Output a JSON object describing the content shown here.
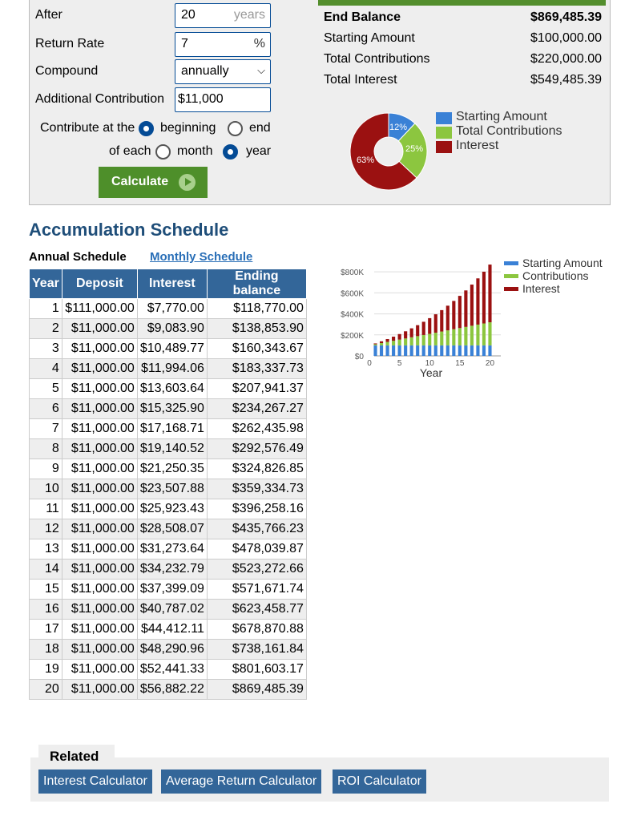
{
  "form": {
    "after_label": "After",
    "after_value": "20",
    "after_suffix": "years",
    "return_label": "Return Rate",
    "return_value": "7",
    "return_suffix": "%",
    "compound_label": "Compound",
    "compound_value": "annually",
    "additional_label": "Additional Contribution",
    "additional_value": "$11,000",
    "contribute_label": "Contribute at the",
    "opt_beginning": "beginning",
    "opt_end": "end",
    "of_each_label": "of each",
    "opt_month": "month",
    "opt_year": "year",
    "calculate_label": "Calculate"
  },
  "results": {
    "end_balance_label": "End Balance",
    "end_balance_value": "$869,485.39",
    "starting_label": "Starting Amount",
    "starting_value": "$100,000.00",
    "contrib_label": "Total Contributions",
    "contrib_value": "$220,000.00",
    "interest_label": "Total Interest",
    "interest_value": "$549,485.39"
  },
  "pie": {
    "slices": [
      {
        "name": "Starting Amount",
        "percent": 12,
        "label": "12%",
        "color": "#3a81d6"
      },
      {
        "name": "Total Contributions",
        "percent": 25,
        "label": "25%",
        "color": "#8cc63f"
      },
      {
        "name": "Interest",
        "percent": 63,
        "label": "63%",
        "color": "#9b1111"
      }
    ]
  },
  "schedule": {
    "title": "Accumulation Schedule",
    "tab_annual": "Annual Schedule",
    "tab_monthly": "Monthly Schedule",
    "headers": [
      "Year",
      "Deposit",
      "Interest",
      "Ending balance"
    ],
    "rows": [
      [
        "1",
        "$111,000.00",
        "$7,770.00",
        "$118,770.00"
      ],
      [
        "2",
        "$11,000.00",
        "$9,083.90",
        "$138,853.90"
      ],
      [
        "3",
        "$11,000.00",
        "$10,489.77",
        "$160,343.67"
      ],
      [
        "4",
        "$11,000.00",
        "$11,994.06",
        "$183,337.73"
      ],
      [
        "5",
        "$11,000.00",
        "$13,603.64",
        "$207,941.37"
      ],
      [
        "6",
        "$11,000.00",
        "$15,325.90",
        "$234,267.27"
      ],
      [
        "7",
        "$11,000.00",
        "$17,168.71",
        "$262,435.98"
      ],
      [
        "8",
        "$11,000.00",
        "$19,140.52",
        "$292,576.49"
      ],
      [
        "9",
        "$11,000.00",
        "$21,250.35",
        "$324,826.85"
      ],
      [
        "10",
        "$11,000.00",
        "$23,507.88",
        "$359,334.73"
      ],
      [
        "11",
        "$11,000.00",
        "$25,923.43",
        "$396,258.16"
      ],
      [
        "12",
        "$11,000.00",
        "$28,508.07",
        "$435,766.23"
      ],
      [
        "13",
        "$11,000.00",
        "$31,273.64",
        "$478,039.87"
      ],
      [
        "14",
        "$11,000.00",
        "$34,232.79",
        "$523,272.66"
      ],
      [
        "15",
        "$11,000.00",
        "$37,399.09",
        "$571,671.74"
      ],
      [
        "16",
        "$11,000.00",
        "$40,787.02",
        "$623,458.77"
      ],
      [
        "17",
        "$11,000.00",
        "$44,412.11",
        "$678,870.88"
      ],
      [
        "18",
        "$11,000.00",
        "$48,290.96",
        "$738,161.84"
      ],
      [
        "19",
        "$11,000.00",
        "$52,441.33",
        "$801,603.17"
      ],
      [
        "20",
        "$11,000.00",
        "$56,882.22",
        "$869,485.39"
      ]
    ]
  },
  "chart_data": {
    "type": "bar",
    "stacked": true,
    "title": "",
    "xlabel": "Year",
    "ylabel": "",
    "x": [
      1,
      2,
      3,
      4,
      5,
      6,
      7,
      8,
      9,
      10,
      11,
      12,
      13,
      14,
      15,
      16,
      17,
      18,
      19,
      20
    ],
    "xticks": [
      "0",
      "5",
      "10",
      "15",
      "20"
    ],
    "xtick_values": [
      0,
      5,
      10,
      15,
      20
    ],
    "xlim": [
      0,
      21
    ],
    "yticks": [
      "$0",
      "$200K",
      "$400K",
      "$600K",
      "$800K"
    ],
    "ytick_values": [
      0,
      200000,
      400000,
      600000,
      800000
    ],
    "ylim": [
      0,
      870000
    ],
    "legend": [
      "Starting Amount",
      "Contributions",
      "Interest"
    ],
    "series": [
      {
        "name": "Starting Amount",
        "color": "#3a81d6",
        "values": [
          100000,
          100000,
          100000,
          100000,
          100000,
          100000,
          100000,
          100000,
          100000,
          100000,
          100000,
          100000,
          100000,
          100000,
          100000,
          100000,
          100000,
          100000,
          100000,
          100000
        ]
      },
      {
        "name": "Contributions",
        "color": "#8cc63f",
        "values": [
          11000,
          22000,
          33000,
          44000,
          55000,
          66000,
          77000,
          88000,
          99000,
          110000,
          121000,
          132000,
          143000,
          154000,
          165000,
          176000,
          187000,
          198000,
          209000,
          220000
        ]
      },
      {
        "name": "Interest",
        "color": "#9b1111",
        "values": [
          7770,
          16854,
          27344,
          39338,
          52941,
          68267,
          85436,
          104576,
          125827,
          149335,
          175258,
          203766,
          235040,
          269273,
          306672,
          347459,
          391871,
          440162,
          492603,
          549485
        ]
      }
    ]
  },
  "related": {
    "title": "Related",
    "links": [
      "Interest Calculator",
      "Average Return Calculator",
      "ROI Calculator"
    ]
  }
}
